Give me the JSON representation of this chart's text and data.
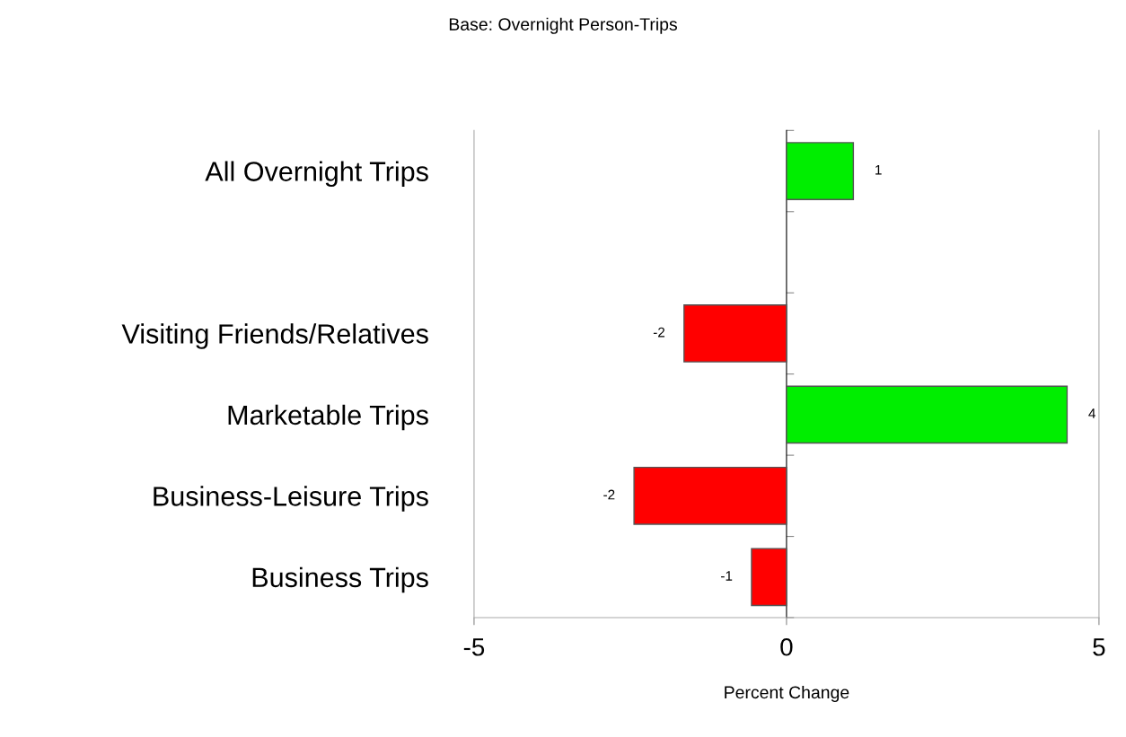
{
  "chart_data": {
    "type": "bar",
    "orientation": "horizontal",
    "title": "Base: Overnight Person-Trips",
    "xlabel": "Percent Change",
    "categories": [
      "All Overnight Trips",
      null,
      "Visiting Friends/Relatives",
      "Marketable Trips",
      "Business-Leisure Trips",
      "Business Trips"
    ],
    "values": [
      1.07,
      null,
      -1.64,
      4.49,
      -2.44,
      -0.56
    ],
    "value_labels": [
      "1",
      null,
      "-2",
      "4",
      "-2",
      "-1"
    ],
    "colors": [
      "#00ee00",
      null,
      "#ff0000",
      "#00ee00",
      "#ff0000",
      "#ff0000"
    ],
    "xlim": [
      -5,
      5
    ],
    "xticks": [
      -5,
      0,
      5
    ],
    "legend": false
  }
}
